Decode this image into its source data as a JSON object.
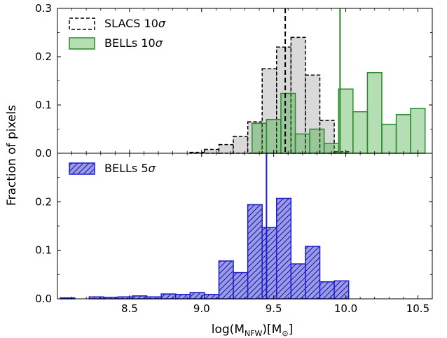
{
  "chart_data": [
    {
      "type": "bar",
      "panel": "top",
      "xlim": [
        8.0,
        10.6
      ],
      "ylim": [
        0,
        0.3
      ],
      "yticks": [
        0.0,
        0.1,
        0.2,
        0.3
      ],
      "ytick_labels": [
        "0.0",
        "0.1",
        "0.2",
        "0.3"
      ],
      "legend_placement": "top-left",
      "series": [
        {
          "name": "SLACS 10σ",
          "legend_text": "SLACS 10",
          "fill": "#d9d9d9",
          "edge": "#000000",
          "edge_style": "dashed",
          "bins": [
            [
              8.92,
              9.02,
              0.002
            ],
            [
              9.02,
              9.12,
              0.008
            ],
            [
              9.12,
              9.22,
              0.018
            ],
            [
              9.22,
              9.32,
              0.035
            ],
            [
              9.32,
              9.42,
              0.065
            ],
            [
              9.42,
              9.52,
              0.175
            ],
            [
              9.52,
              9.62,
              0.22
            ],
            [
              9.62,
              9.72,
              0.24
            ],
            [
              9.72,
              9.82,
              0.162
            ],
            [
              9.82,
              9.92,
              0.068
            ],
            [
              9.92,
              10.02,
              0.003
            ]
          ],
          "median_line": 9.58,
          "median_style": "dashed",
          "median_color": "#000000"
        },
        {
          "name": "BELLs 10σ",
          "legend_text": "BELLs 10",
          "fill": "#2ca02c",
          "fill_opacity": 0.35,
          "edge": "#2a8a2a",
          "edge_style": "solid",
          "bins": [
            [
              9.35,
              9.45,
              0.062
            ],
            [
              9.45,
              9.55,
              0.07
            ],
            [
              9.55,
              9.65,
              0.124
            ],
            [
              9.65,
              9.75,
              0.04
            ],
            [
              9.75,
              9.85,
              0.05
            ],
            [
              9.85,
              9.95,
              0.02
            ],
            [
              9.95,
              10.05,
              0.133
            ],
            [
              10.05,
              10.15,
              0.086
            ],
            [
              10.15,
              10.25,
              0.167
            ],
            [
              10.25,
              10.35,
              0.06
            ],
            [
              10.35,
              10.45,
              0.08
            ],
            [
              10.45,
              10.55,
              0.093
            ]
          ],
          "median_line": 9.96,
          "median_style": "solid",
          "median_color": "#2a8a2a"
        }
      ]
    },
    {
      "type": "bar",
      "panel": "bottom",
      "xlim": [
        8.0,
        10.6
      ],
      "ylim": [
        0,
        0.3
      ],
      "yticks": [
        0.0,
        0.1,
        0.2
      ],
      "ytick_labels": [
        "0.0",
        "0.1",
        "0.2"
      ],
      "xticks": [
        8.5,
        9.0,
        9.5,
        10.0,
        10.5
      ],
      "xtick_labels": [
        "8.5",
        "9.0",
        "9.5",
        "10.0",
        "10.5"
      ],
      "legend_placement": "top-left",
      "series": [
        {
          "name": "BELLs 5σ",
          "legend_text": "BELLs 5",
          "fill": "#9999f0",
          "edge": "#1c1cd6",
          "edge_style": "solid",
          "hatch": true,
          "bins": [
            [
              8.02,
              8.12,
              0.002
            ],
            [
              8.22,
              8.32,
              0.004
            ],
            [
              8.32,
              8.42,
              0.003
            ],
            [
              8.42,
              8.52,
              0.004
            ],
            [
              8.52,
              8.62,
              0.006
            ],
            [
              8.62,
              8.72,
              0.004
            ],
            [
              8.72,
              8.82,
              0.01
            ],
            [
              8.82,
              8.92,
              0.009
            ],
            [
              8.92,
              9.02,
              0.013
            ],
            [
              9.02,
              9.12,
              0.009
            ],
            [
              9.12,
              9.22,
              0.078
            ],
            [
              9.22,
              9.32,
              0.054
            ],
            [
              9.32,
              9.42,
              0.194
            ],
            [
              9.42,
              9.52,
              0.147
            ],
            [
              9.52,
              9.62,
              0.207
            ],
            [
              9.62,
              9.72,
              0.072
            ],
            [
              9.72,
              9.82,
              0.108
            ],
            [
              9.82,
              9.92,
              0.035
            ],
            [
              9.92,
              10.02,
              0.037
            ]
          ],
          "median_line": 9.45,
          "median_style": "solid",
          "median_color": "#1c1cd6"
        }
      ]
    }
  ],
  "labels": {
    "ylabel": "Fraction of pixels",
    "xlabel_main": "log(M",
    "xlabel_sub": "NFW",
    "xlabel_mid": ")[M",
    "xlabel_sun": "⊙",
    "xlabel_end": "]",
    "sigma": "σ"
  }
}
